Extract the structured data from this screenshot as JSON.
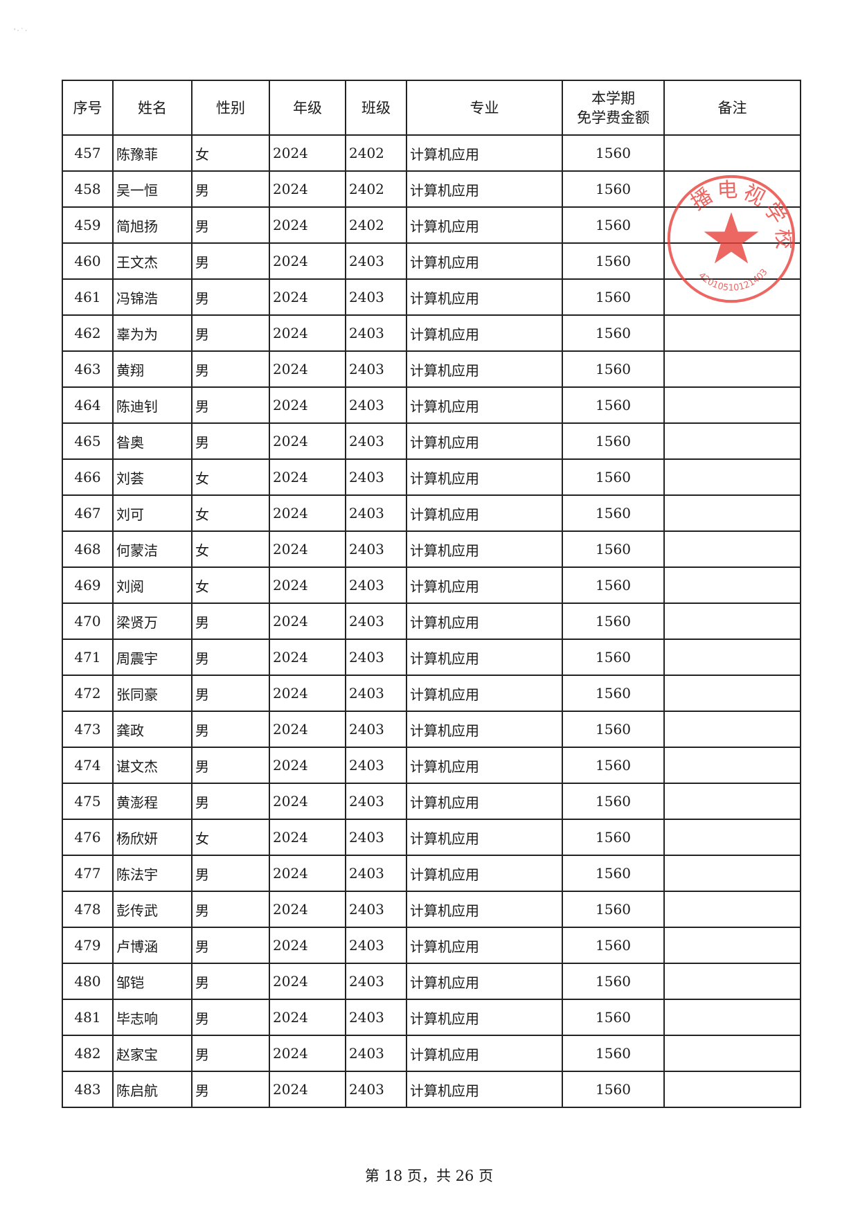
{
  "table": {
    "headers": [
      "序号",
      "姓名",
      "性别",
      "年级",
      "班级",
      "专业",
      "本学期\n免学费金额",
      "备注"
    ],
    "rows": [
      [
        "457",
        "陈豫菲",
        "女",
        "2024",
        "2402",
        "计算机应用",
        "1560",
        ""
      ],
      [
        "458",
        "吴一恒",
        "男",
        "2024",
        "2402",
        "计算机应用",
        "1560",
        ""
      ],
      [
        "459",
        "简旭扬",
        "男",
        "2024",
        "2402",
        "计算机应用",
        "1560",
        ""
      ],
      [
        "460",
        "王文杰",
        "男",
        "2024",
        "2403",
        "计算机应用",
        "1560",
        ""
      ],
      [
        "461",
        "冯锦浩",
        "男",
        "2024",
        "2403",
        "计算机应用",
        "1560",
        ""
      ],
      [
        "462",
        "辜为为",
        "男",
        "2024",
        "2403",
        "计算机应用",
        "1560",
        ""
      ],
      [
        "463",
        "黄翔",
        "男",
        "2024",
        "2403",
        "计算机应用",
        "1560",
        ""
      ],
      [
        "464",
        "陈迪钊",
        "男",
        "2024",
        "2403",
        "计算机应用",
        "1560",
        ""
      ],
      [
        "465",
        "昝奥",
        "男",
        "2024",
        "2403",
        "计算机应用",
        "1560",
        ""
      ],
      [
        "466",
        "刘荟",
        "女",
        "2024",
        "2403",
        "计算机应用",
        "1560",
        ""
      ],
      [
        "467",
        "刘可",
        "女",
        "2024",
        "2403",
        "计算机应用",
        "1560",
        ""
      ],
      [
        "468",
        "何蒙洁",
        "女",
        "2024",
        "2403",
        "计算机应用",
        "1560",
        ""
      ],
      [
        "469",
        "刘阅",
        "女",
        "2024",
        "2403",
        "计算机应用",
        "1560",
        ""
      ],
      [
        "470",
        "梁贤万",
        "男",
        "2024",
        "2403",
        "计算机应用",
        "1560",
        ""
      ],
      [
        "471",
        "周震宇",
        "男",
        "2024",
        "2403",
        "计算机应用",
        "1560",
        ""
      ],
      [
        "472",
        "张同豪",
        "男",
        "2024",
        "2403",
        "计算机应用",
        "1560",
        ""
      ],
      [
        "473",
        "龚政",
        "男",
        "2024",
        "2403",
        "计算机应用",
        "1560",
        ""
      ],
      [
        "474",
        "谌文杰",
        "男",
        "2024",
        "2403",
        "计算机应用",
        "1560",
        ""
      ],
      [
        "475",
        "黄澎程",
        "男",
        "2024",
        "2403",
        "计算机应用",
        "1560",
        ""
      ],
      [
        "476",
        "杨欣妍",
        "女",
        "2024",
        "2403",
        "计算机应用",
        "1560",
        ""
      ],
      [
        "477",
        "陈法宇",
        "男",
        "2024",
        "2403",
        "计算机应用",
        "1560",
        ""
      ],
      [
        "478",
        "彭传武",
        "男",
        "2024",
        "2403",
        "计算机应用",
        "1560",
        ""
      ],
      [
        "479",
        "卢博涵",
        "男",
        "2024",
        "2403",
        "计算机应用",
        "1560",
        ""
      ],
      [
        "480",
        "邹铠",
        "男",
        "2024",
        "2403",
        "计算机应用",
        "1560",
        ""
      ],
      [
        "481",
        "毕志响",
        "男",
        "2024",
        "2403",
        "计算机应用",
        "1560",
        ""
      ],
      [
        "482",
        "赵家宝",
        "男",
        "2024",
        "2403",
        "计算机应用",
        "1560",
        ""
      ],
      [
        "483",
        "陈启航",
        "男",
        "2024",
        "2403",
        "计算机应用",
        "1560",
        ""
      ]
    ]
  },
  "stamp": {
    "text": "播电视学校",
    "code": "42010510121403",
    "color": "#e8413c"
  },
  "footer": {
    "page_label": "第 18 页，共 26 页"
  }
}
